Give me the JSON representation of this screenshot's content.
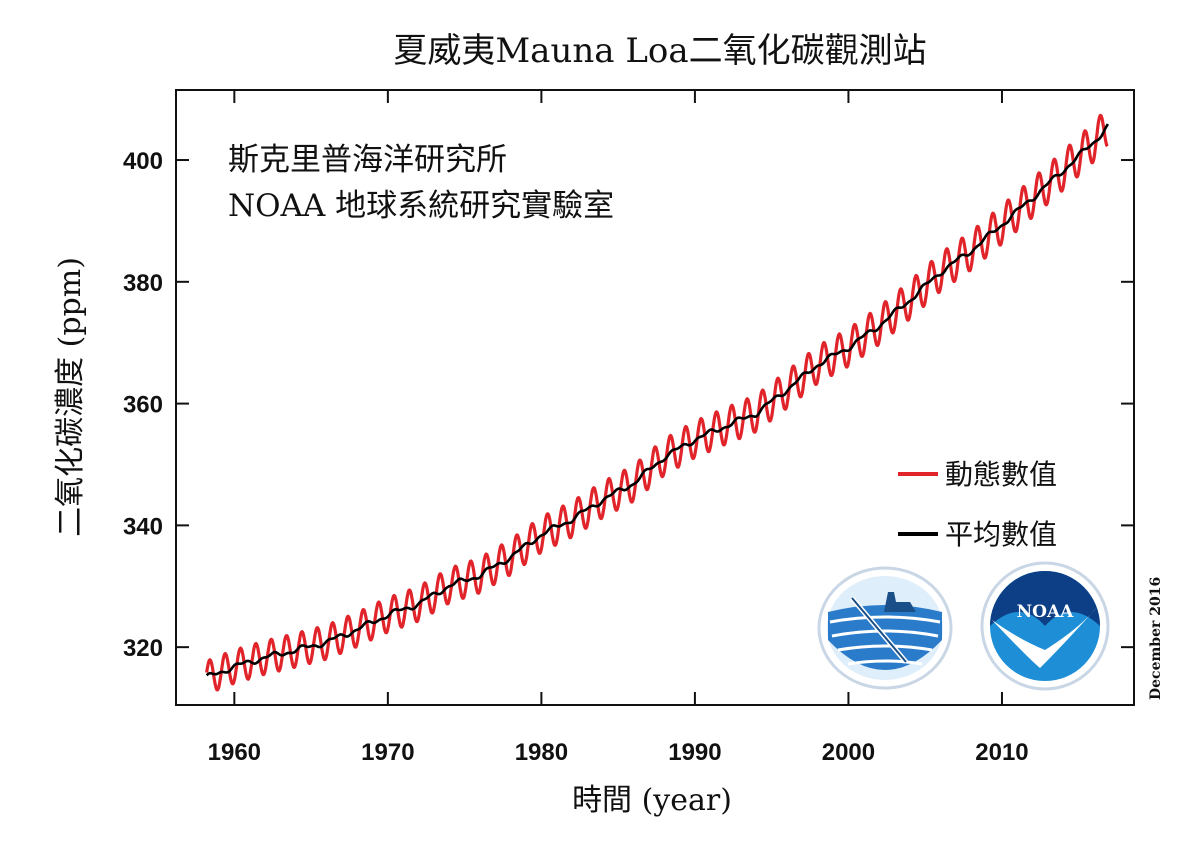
{
  "chart_data": {
    "type": "line",
    "title": "夏威夷Mauna Loa二氧化碳觀測站",
    "annotation_lines": [
      "斯克里普海洋研究所",
      "NOAA 地球系統研究實驗室"
    ],
    "xlabel": "時間 (year)",
    "ylabel": "二氧化碳濃度 (ppm)",
    "date_note": "December 2016",
    "xlim": [
      1956.2,
      2018.6
    ],
    "ylim": [
      310.5,
      411.5
    ],
    "x_ticks": [
      1960,
      1970,
      1980,
      1990,
      2000,
      2010
    ],
    "y_ticks": [
      320,
      340,
      360,
      380,
      400
    ],
    "grid": false,
    "legend_position": "right",
    "series": [
      {
        "name": "動態數值",
        "color": "#e0242a",
        "seasonal_amplitude_ppm": 3.2,
        "note": "monthly values = trend + seasonal cycle"
      },
      {
        "name": "平均數值",
        "color": "#000000",
        "x": [
          1958.2,
          1960,
          1962,
          1964,
          1966,
          1968,
          1970,
          1972,
          1974,
          1976,
          1978,
          1980,
          1982,
          1984,
          1986,
          1988,
          1990,
          1992,
          1994,
          1996,
          1998,
          2000,
          2002,
          2004,
          2006,
          2008,
          2010,
          2012,
          2014,
          2016,
          2016.9
        ],
        "values": [
          315.0,
          316.8,
          318.3,
          319.5,
          320.8,
          322.9,
          325.3,
          327.1,
          330.1,
          331.8,
          334.8,
          338.5,
          341.0,
          344.2,
          346.9,
          351.2,
          354.1,
          356.3,
          358.4,
          362.3,
          366.4,
          369.2,
          372.8,
          377.0,
          381.6,
          385.1,
          389.4,
          393.8,
          398.3,
          403.0,
          405.5
        ]
      }
    ]
  },
  "logos": [
    {
      "icon": "noaa-ocean-logo",
      "colors": [
        "#1f6fc4",
        "#7fb8e6"
      ]
    },
    {
      "icon": "noaa-bird-logo",
      "colors": [
        "#00468c",
        "#3fa7e0"
      ]
    }
  ]
}
